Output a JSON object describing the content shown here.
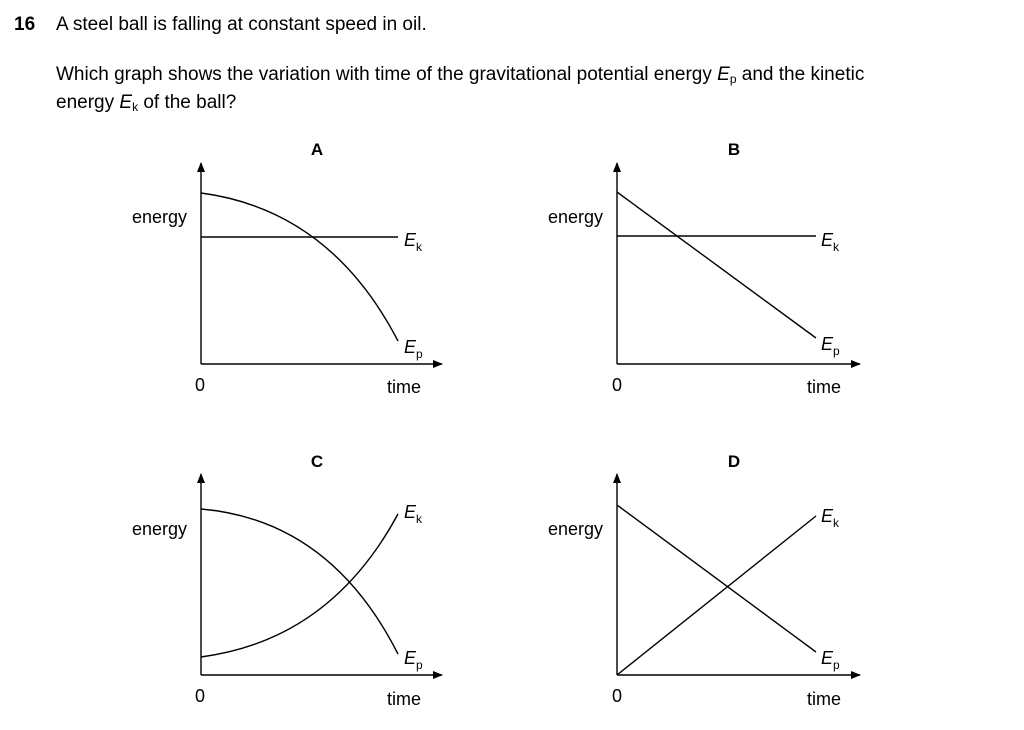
{
  "question": {
    "number": "16",
    "stem": "A steel ball is falling at constant speed in oil.",
    "prompt_part1": "Which graph shows the variation with time of the gravitational potential energy ",
    "ep_symbol": "E",
    "ep_sub": "p",
    "prompt_part2": " and the kinetic",
    "prompt_part3": "energy ",
    "ek_symbol": "E",
    "ek_sub": "k",
    "prompt_part4": " of the ball?"
  },
  "common": {
    "y_label": "energy",
    "x_label": "time",
    "origin_label": "0",
    "energy_symbol": "E",
    "ek_sub": "k",
    "ep_sub": "p"
  },
  "options": [
    {
      "letter": "A",
      "ek": "horizontal line (constant)",
      "ep": "decreasing curve, increasingly steep"
    },
    {
      "letter": "B",
      "ek": "horizontal line (constant)",
      "ep": "straight line decreasing linearly"
    },
    {
      "letter": "C",
      "ek": "increasing curve, increasingly steep",
      "ep": "decreasing curve, increasingly steep"
    },
    {
      "letter": "D",
      "ek": "straight line increasing from zero",
      "ep": "straight line decreasing linearly"
    }
  ]
}
